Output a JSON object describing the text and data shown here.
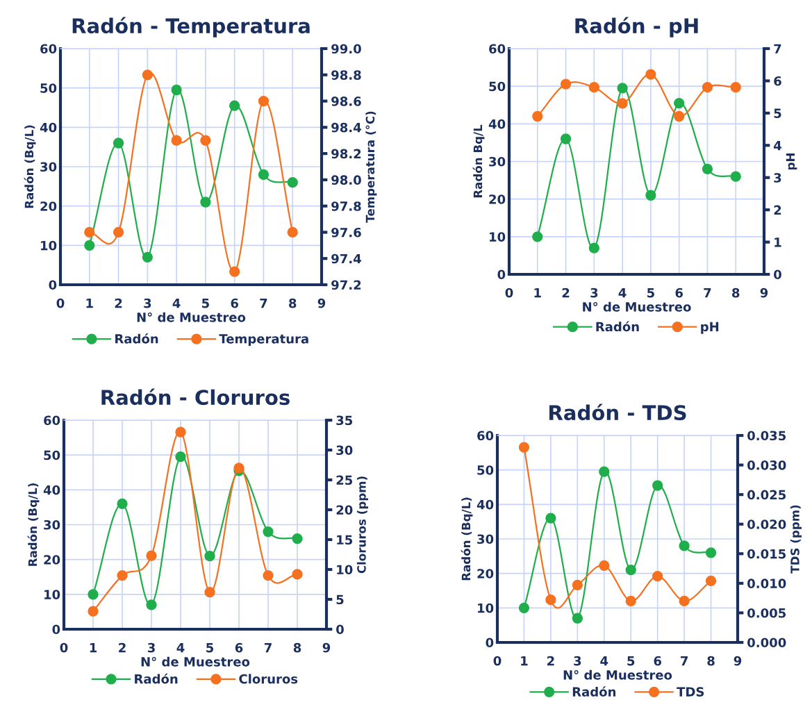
{
  "chart_data": [
    {
      "type": "line",
      "title": "Radón - Temperatura",
      "xlabel": "N° de Muestreo",
      "ylabel": "Radón (Bq/L)",
      "y2label": "Temperatura (°C)",
      "x": [
        1,
        2,
        3,
        4,
        5,
        6,
        7,
        8
      ],
      "xlim": [
        0,
        9
      ],
      "xticks": [
        0,
        1,
        2,
        3,
        4,
        5,
        6,
        7,
        8,
        9
      ],
      "ylim": [
        0,
        60
      ],
      "yticks": [
        0,
        10,
        20,
        30,
        40,
        50,
        60
      ],
      "y2lim": [
        97.2,
        99.0
      ],
      "y2ticks": [
        {
          "value": 97.2,
          "label": "97.2"
        },
        {
          "value": 97.4,
          "label": "97.4"
        },
        {
          "value": 97.6,
          "label": "97.6"
        },
        {
          "value": 97.8,
          "label": "97.8"
        },
        {
          "value": 98.0,
          "label": "98.0"
        },
        {
          "value": 98.2,
          "label": "98.2"
        },
        {
          "value": 98.4,
          "label": "98.4"
        },
        {
          "value": 98.6,
          "label": "98.6"
        },
        {
          "value": 98.8,
          "label": "98.8"
        },
        {
          "value": 99.0,
          "label": "99.0"
        }
      ],
      "grid": true,
      "legend": "bottom",
      "marker": "circle",
      "line_style": "solid",
      "series": [
        {
          "name": "Radón",
          "color": "#1fae4b",
          "values": [
            10,
            36,
            7,
            49.5,
            21,
            45.5,
            28,
            26
          ]
        },
        {
          "name": "Temperatura",
          "color": "#f5711f",
          "axis": "y2",
          "values": [
            97.6,
            97.6,
            98.8,
            98.3,
            98.3,
            97.3,
            98.6,
            97.6
          ]
        }
      ]
    },
    {
      "type": "line",
      "title": "Radón - pH",
      "xlabel": "N° de Muestreo",
      "ylabel": "Radón Bq/L",
      "y2label": "pH",
      "x": [
        1,
        2,
        3,
        4,
        5,
        6,
        7,
        8
      ],
      "xlim": [
        0,
        9
      ],
      "xticks": [
        0,
        1,
        2,
        3,
        4,
        5,
        6,
        7,
        8,
        9
      ],
      "ylim": [
        0,
        60
      ],
      "yticks": [
        0,
        10,
        20,
        30,
        40,
        50,
        60
      ],
      "y2lim": [
        0,
        7
      ],
      "y2ticks": [
        0,
        1,
        2,
        3,
        4,
        5,
        6,
        7
      ],
      "grid": true,
      "legend": "bottom",
      "marker": "circle",
      "line_style": "solid",
      "series": [
        {
          "name": "Radón",
          "color": "#1fae4b",
          "values": [
            10,
            36,
            7,
            49.5,
            21,
            45.5,
            28,
            26
          ]
        },
        {
          "name": "pH",
          "color": "#f5711f",
          "axis": "y2",
          "values": [
            4.9,
            5.9,
            5.8,
            5.3,
            6.2,
            4.9,
            5.8,
            5.8
          ]
        }
      ]
    },
    {
      "type": "line",
      "title": "Radón - Cloruros",
      "xlabel": "N° de Muestreo",
      "ylabel": "Radón (Bq/L)",
      "y2label": "Cloruros (ppm)",
      "x": [
        1,
        2,
        3,
        4,
        5,
        6,
        7,
        8
      ],
      "xlim": [
        0,
        9
      ],
      "xticks": [
        0,
        1,
        2,
        3,
        4,
        5,
        6,
        7,
        8,
        9
      ],
      "ylim": [
        0,
        60
      ],
      "yticks": [
        0,
        10,
        20,
        30,
        40,
        50,
        60
      ],
      "y2lim": [
        0,
        35
      ],
      "y2ticks": [
        0,
        5,
        10,
        15,
        20,
        25,
        30,
        35
      ],
      "grid": true,
      "legend": "bottom",
      "marker": "circle",
      "line_style": "solid",
      "series": [
        {
          "name": "Radón",
          "color": "#1fae4b",
          "values": [
            10,
            36,
            7,
            49.5,
            21,
            45.5,
            28,
            26
          ]
        },
        {
          "name": "Cloruros",
          "color": "#f5711f",
          "axis": "y2",
          "values": [
            3,
            9,
            12.3,
            33,
            6.2,
            27,
            9,
            9.2
          ]
        }
      ]
    },
    {
      "type": "line",
      "title": "Radón - TDS",
      "xlabel": "N° de Muestreo",
      "ylabel": "Radón (Bq/L)",
      "y2label": "TDS (ppm)",
      "x": [
        1,
        2,
        3,
        4,
        5,
        6,
        7,
        8
      ],
      "xlim": [
        0,
        9
      ],
      "xticks": [
        0,
        1,
        2,
        3,
        4,
        5,
        6,
        7,
        8,
        9
      ],
      "ylim": [
        0,
        60
      ],
      "yticks": [
        0,
        10,
        20,
        30,
        40,
        50,
        60
      ],
      "y2lim": [
        0,
        0.035
      ],
      "y2ticks": [
        {
          "value": 0,
          "label": "0.000"
        },
        {
          "value": 0.005,
          "label": "0.005"
        },
        {
          "value": 0.01,
          "label": "0.010"
        },
        {
          "value": 0.015,
          "label": "0.015"
        },
        {
          "value": 0.02,
          "label": "0.020"
        },
        {
          "value": 0.025,
          "label": "0.025"
        },
        {
          "value": 0.03,
          "label": "0.030"
        },
        {
          "value": 0.035,
          "label": "0.035"
        }
      ],
      "grid": true,
      "legend": "bottom",
      "marker": "circle",
      "line_style": "solid",
      "series": [
        {
          "name": "Radón",
          "color": "#1fae4b",
          "values": [
            10,
            36,
            7,
            49.5,
            21,
            45.5,
            28,
            26
          ]
        },
        {
          "name": "TDS",
          "color": "#f5711f",
          "axis": "y2",
          "values": [
            0.033,
            0.0072,
            0.0097,
            0.013,
            0.007,
            0.0112,
            0.007,
            0.0104
          ]
        }
      ]
    }
  ]
}
